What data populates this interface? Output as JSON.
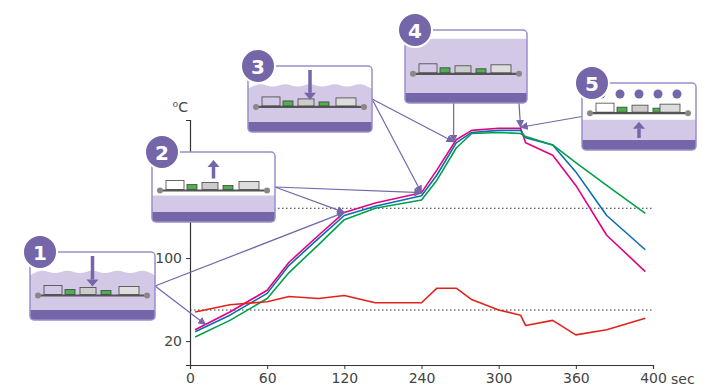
{
  "chart_data": {
    "type": "line",
    "x_label": "sec",
    "y_label": "⁰C",
    "x": [
      4,
      31,
      60,
      77,
      100,
      120,
      168,
      240,
      252,
      267,
      279,
      300,
      317,
      321,
      342,
      360,
      376,
      396
    ],
    "series": [
      {
        "color": "#e6007e",
        "values": [
          31,
          48,
          69,
          96,
          122,
          144,
          153,
          163,
          185,
          214,
          223,
          225,
          225,
          211,
          199,
          170,
          122,
          87
        ]
      },
      {
        "color": "#0a6cb4",
        "values": [
          29,
          45,
          66,
          93,
          119,
          141,
          150,
          160,
          180,
          211,
          221,
          223,
          223,
          216,
          209,
          183,
          141,
          108
        ]
      },
      {
        "color": "#00a04a",
        "values": [
          24,
          40,
          61,
          86,
          113,
          137,
          148,
          156,
          175,
          206,
          220,
          221,
          220,
          217,
          209,
          192,
          170,
          143
        ]
      },
      {
        "color": "#e2231a",
        "values": [
          48,
          55,
          58,
          63,
          61,
          64,
          57,
          57,
          71,
          71,
          60,
          50,
          45,
          35,
          40,
          26,
          31,
          42
        ]
      }
    ],
    "xlim": [
      0,
      400
    ],
    "xticks": [
      0,
      60,
      120,
      240,
      300,
      360,
      400
    ],
    "ylim": [
      -3,
      233
    ],
    "yticks": [
      20,
      100
    ],
    "reference_lines": [
      148,
      50
    ],
    "annotations": [
      {
        "label": "1",
        "points": [
          [
            12,
            36
          ],
          [
            120,
            144
          ]
        ]
      },
      {
        "label": "2",
        "points": [
          [
            120,
            144
          ],
          [
            240,
            163
          ]
        ]
      },
      {
        "label": "3",
        "points": [
          [
            240,
            163
          ],
          [
            265,
            212
          ]
        ]
      },
      {
        "label": "4",
        "points": [
          [
            265,
            212
          ],
          [
            317,
            226
          ]
        ]
      },
      {
        "label": "5",
        "points": [
          [
            317,
            226
          ]
        ]
      }
    ]
  }
}
